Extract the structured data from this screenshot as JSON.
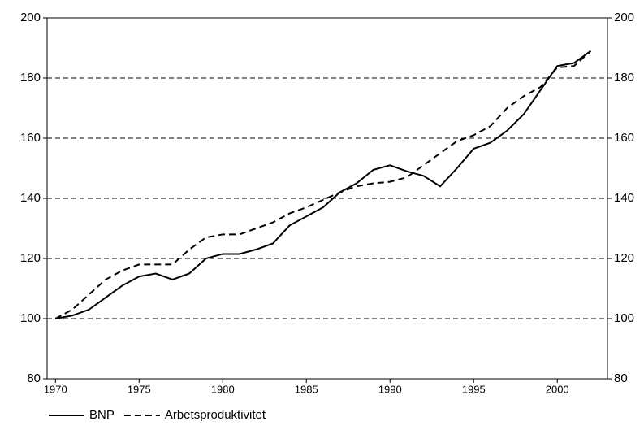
{
  "chart_data": {
    "type": "line",
    "x": [
      1970,
      1971,
      1972,
      1973,
      1974,
      1975,
      1976,
      1977,
      1978,
      1979,
      1980,
      1981,
      1982,
      1983,
      1984,
      1985,
      1986,
      1987,
      1988,
      1989,
      1990,
      1991,
      1992,
      1993,
      1994,
      1995,
      1996,
      1997,
      1998,
      1999,
      2000,
      2001,
      2002
    ],
    "series": [
      {
        "name": "BNP",
        "color": "#000000",
        "dash": "solid",
        "values": [
          100,
          101,
          103,
          107,
          111,
          114,
          115,
          113,
          115,
          120,
          121.5,
          121.5,
          123,
          125,
          131,
          134,
          137,
          142,
          145,
          149.5,
          151,
          149,
          147.5,
          144,
          150,
          156.5,
          158.5,
          162.5,
          168,
          176,
          184,
          185,
          189
        ]
      },
      {
        "name": "Arbetsproduktivitet",
        "color": "#000000",
        "dash": "dashed",
        "values": [
          100,
          103,
          108,
          113,
          116,
          118,
          118,
          118,
          123,
          127,
          128,
          128,
          130,
          132,
          135,
          137,
          139.5,
          142,
          144,
          145,
          145.5,
          147,
          151,
          155,
          159,
          161,
          164,
          170,
          174,
          177,
          183.5,
          184,
          189
        ]
      }
    ],
    "xlim": [
      1969.5,
      2003
    ],
    "xticks": [
      1970,
      1975,
      1980,
      1985,
      1990,
      1995,
      2000
    ],
    "ylim": [
      80,
      200
    ],
    "yticks": [
      80,
      100,
      120,
      140,
      160,
      180,
      200
    ],
    "y2lim": [
      80,
      200
    ],
    "y2ticks": [
      80,
      100,
      120,
      140,
      160,
      180,
      200
    ],
    "grid": true,
    "legend": "bottom-left"
  }
}
